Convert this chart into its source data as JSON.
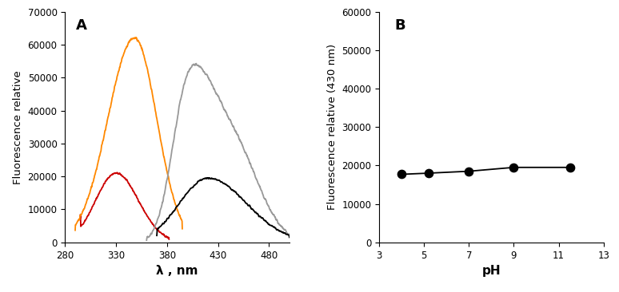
{
  "panel_A_label": "A",
  "panel_B_label": "B",
  "ylabel_A": "Fluorescence relative",
  "xlabel_A": "λ , nm",
  "ylabel_B": "Fluorescence relative (430 nm)",
  "xlabel_B": "pH",
  "xlim_A": [
    280,
    500
  ],
  "ylim_A": [
    0,
    70000
  ],
  "yticks_A": [
    0,
    10000,
    20000,
    30000,
    40000,
    50000,
    60000,
    70000
  ],
  "xticks_A": [
    280,
    330,
    380,
    430,
    480
  ],
  "xlim_B": [
    3,
    13
  ],
  "ylim_B": [
    0,
    60000
  ],
  "yticks_B": [
    0,
    10000,
    20000,
    30000,
    40000,
    50000,
    60000
  ],
  "xticks_B": [
    3,
    5,
    7,
    9,
    11,
    13
  ],
  "colors": {
    "red": "#cc0000",
    "orange": "#ff8800",
    "black": "#000000",
    "gray": "#999999"
  },
  "pH_x": [
    4.0,
    5.2,
    7.0,
    9.0,
    11.5
  ],
  "pH_y": [
    17700,
    18000,
    18500,
    19500,
    19500
  ],
  "background_color": "#ffffff"
}
